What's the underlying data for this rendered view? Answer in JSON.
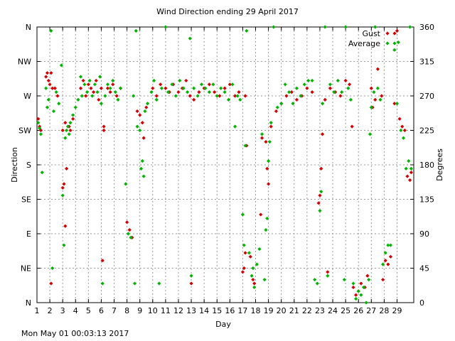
{
  "footer": {
    "timestamp": "Mon May 01 00:03:13 2017"
  },
  "chart_data": {
    "type": "scatter",
    "title": "Wind Direction ending 29 April 2017",
    "xlabel": "Day",
    "ylabel_left": "Direction",
    "ylabel_right": "Degrees",
    "xlim": [
      1,
      30.3
    ],
    "ylim": [
      0,
      360
    ],
    "grid": true,
    "legend_position": "top-right",
    "x_ticks": [
      "1",
      "2",
      "3",
      "4",
      "5",
      "6",
      "7",
      "8",
      "9",
      "10",
      "11",
      "12",
      "13",
      "14",
      "15",
      "16",
      "17",
      "18",
      "19",
      "20",
      "21",
      "22",
      "23",
      "24",
      "25",
      "26",
      "27",
      "28",
      "29"
    ],
    "y_left_ticks": [
      {
        "value": 0,
        "label": "N"
      },
      {
        "value": 45,
        "label": "NE"
      },
      {
        "value": 90,
        "label": "E"
      },
      {
        "value": 135,
        "label": "SE"
      },
      {
        "value": 180,
        "label": "S"
      },
      {
        "value": 225,
        "label": "SW"
      },
      {
        "value": 270,
        "label": "W"
      },
      {
        "value": 315,
        "label": "NW"
      },
      {
        "value": 360,
        "label": "N"
      }
    ],
    "y_right_ticks": [
      "0",
      "45",
      "90",
      "135",
      "180",
      "225",
      "270",
      "315",
      "360"
    ],
    "series": [
      {
        "name": "Gust",
        "color": "#d40000",
        "points": [
          [
            1.1,
            240
          ],
          [
            1.2,
            230
          ],
          [
            1.3,
            225
          ],
          [
            1.7,
            295
          ],
          [
            1.8,
            300
          ],
          [
            1.9,
            290
          ],
          [
            2.0,
            285
          ],
          [
            2.1,
            300
          ],
          [
            2.2,
            280
          ],
          [
            2.1,
            25
          ],
          [
            2.4,
            280
          ],
          [
            2.6,
            270
          ],
          [
            3.0,
            150
          ],
          [
            3.1,
            155
          ],
          [
            3.2,
            100
          ],
          [
            3.3,
            175
          ],
          [
            3.0,
            225
          ],
          [
            3.2,
            235
          ],
          [
            3.5,
            230
          ],
          [
            3.6,
            225
          ],
          [
            3.8,
            240
          ],
          [
            4.4,
            280
          ],
          [
            4.6,
            290
          ],
          [
            4.8,
            270
          ],
          [
            5.0,
            285
          ],
          [
            5.2,
            280
          ],
          [
            5.4,
            275
          ],
          [
            5.6,
            290
          ],
          [
            5.8,
            265
          ],
          [
            6.0,
            280
          ],
          [
            6.1,
            55
          ],
          [
            6.2,
            225
          ],
          [
            6.2,
            230
          ],
          [
            6.5,
            280
          ],
          [
            6.7,
            275
          ],
          [
            6.9,
            285
          ],
          [
            7.2,
            270
          ],
          [
            7.5,
            280
          ],
          [
            8.0,
            105
          ],
          [
            8.2,
            95
          ],
          [
            8.4,
            85
          ],
          [
            8.8,
            250
          ],
          [
            9.0,
            245
          ],
          [
            9.2,
            235
          ],
          [
            9.3,
            215
          ],
          [
            9.5,
            255
          ],
          [
            10.0,
            280
          ],
          [
            10.3,
            270
          ],
          [
            10.6,
            285
          ],
          [
            11.0,
            280
          ],
          [
            11.3,
            275
          ],
          [
            11.6,
            285
          ],
          [
            12.0,
            275
          ],
          [
            12.3,
            280
          ],
          [
            12.6,
            290
          ],
          [
            12.9,
            270
          ],
          [
            13.0,
            25
          ],
          [
            13.2,
            265
          ],
          [
            13.6,
            275
          ],
          [
            14.0,
            280
          ],
          [
            14.4,
            285
          ],
          [
            14.8,
            275
          ],
          [
            15.2,
            270
          ],
          [
            15.6,
            280
          ],
          [
            16.0,
            285
          ],
          [
            16.4,
            270
          ],
          [
            16.7,
            275
          ],
          [
            17.0,
            40
          ],
          [
            17.1,
            45
          ],
          [
            17.2,
            65
          ],
          [
            17.3,
            205
          ],
          [
            17.2,
            270
          ],
          [
            17.6,
            60
          ],
          [
            17.8,
            30
          ],
          [
            17.9,
            25
          ],
          [
            18.4,
            115
          ],
          [
            18.5,
            215
          ],
          [
            18.8,
            210
          ],
          [
            18.9,
            175
          ],
          [
            19.0,
            155
          ],
          [
            19.2,
            230
          ],
          [
            19.6,
            250
          ],
          [
            20.0,
            260
          ],
          [
            20.4,
            270
          ],
          [
            20.8,
            275
          ],
          [
            21.2,
            265
          ],
          [
            21.6,
            270
          ],
          [
            22.0,
            280
          ],
          [
            22.4,
            275
          ],
          [
            22.9,
            130
          ],
          [
            23.0,
            140
          ],
          [
            23.1,
            175
          ],
          [
            23.2,
            220
          ],
          [
            23.4,
            265
          ],
          [
            23.6,
            40
          ],
          [
            23.8,
            280
          ],
          [
            24.2,
            275
          ],
          [
            24.6,
            270
          ],
          [
            25.0,
            290
          ],
          [
            25.3,
            285
          ],
          [
            25.5,
            230
          ],
          [
            25.6,
            20
          ],
          [
            25.8,
            10
          ],
          [
            26.0,
            15
          ],
          [
            26.2,
            25
          ],
          [
            26.5,
            20
          ],
          [
            26.7,
            35
          ],
          [
            27.0,
            280
          ],
          [
            27.1,
            255
          ],
          [
            27.3,
            265
          ],
          [
            27.5,
            305
          ],
          [
            27.8,
            270
          ],
          [
            27.9,
            30
          ],
          [
            28.1,
            55
          ],
          [
            28.3,
            50
          ],
          [
            28.5,
            60
          ],
          [
            28.8,
            260
          ],
          [
            29.0,
            355
          ],
          [
            29.2,
            240
          ],
          [
            29.4,
            230
          ],
          [
            29.6,
            225
          ],
          [
            29.8,
            165
          ],
          [
            30.0,
            160
          ],
          [
            30.1,
            170
          ]
        ]
      },
      {
        "name": "Average",
        "color": "#00b400",
        "points": [
          [
            1.1,
            235
          ],
          [
            1.2,
            228
          ],
          [
            1.3,
            220
          ],
          [
            1.4,
            170
          ],
          [
            1.7,
            280
          ],
          [
            1.8,
            255
          ],
          [
            1.9,
            265
          ],
          [
            2.1,
            355
          ],
          [
            2.2,
            45
          ],
          [
            2.3,
            250
          ],
          [
            2.5,
            275
          ],
          [
            2.7,
            260
          ],
          [
            2.9,
            310
          ],
          [
            3.0,
            140
          ],
          [
            3.1,
            75
          ],
          [
            3.2,
            215
          ],
          [
            3.3,
            225
          ],
          [
            3.4,
            230
          ],
          [
            3.5,
            220
          ],
          [
            3.6,
            235
          ],
          [
            3.8,
            245
          ],
          [
            4.0,
            255
          ],
          [
            4.2,
            265
          ],
          [
            4.4,
            295
          ],
          [
            4.5,
            270
          ],
          [
            4.7,
            285
          ],
          [
            4.9,
            275
          ],
          [
            5.1,
            290
          ],
          [
            5.3,
            270
          ],
          [
            5.5,
            285
          ],
          [
            5.7,
            275
          ],
          [
            5.9,
            295
          ],
          [
            6.0,
            260
          ],
          [
            6.1,
            25
          ],
          [
            6.3,
            270
          ],
          [
            6.5,
            285
          ],
          [
            6.7,
            280
          ],
          [
            6.9,
            290
          ],
          [
            7.1,
            275
          ],
          [
            7.3,
            265
          ],
          [
            7.5,
            280
          ],
          [
            7.9,
            155
          ],
          [
            8.1,
            90
          ],
          [
            8.3,
            85
          ],
          [
            8.5,
            270
          ],
          [
            8.6,
            25
          ],
          [
            8.7,
            355
          ],
          [
            8.8,
            230
          ],
          [
            9.0,
            225
          ],
          [
            9.1,
            175
          ],
          [
            9.2,
            185
          ],
          [
            9.3,
            165
          ],
          [
            9.4,
            250
          ],
          [
            9.6,
            260
          ],
          [
            9.9,
            275
          ],
          [
            10.1,
            290
          ],
          [
            10.3,
            265
          ],
          [
            10.5,
            25
          ],
          [
            10.7,
            280
          ],
          [
            11.0,
            360
          ],
          [
            11.2,
            275
          ],
          [
            11.5,
            285
          ],
          [
            11.8,
            270
          ],
          [
            12.1,
            290
          ],
          [
            12.4,
            280
          ],
          [
            12.7,
            275
          ],
          [
            12.9,
            345
          ],
          [
            13.0,
            35
          ],
          [
            13.2,
            280
          ],
          [
            13.5,
            270
          ],
          [
            13.8,
            285
          ],
          [
            14.1,
            280
          ],
          [
            14.4,
            275
          ],
          [
            14.7,
            285
          ],
          [
            15.0,
            270
          ],
          [
            15.3,
            280
          ],
          [
            15.6,
            275
          ],
          [
            15.9,
            265
          ],
          [
            16.2,
            285
          ],
          [
            16.4,
            230
          ],
          [
            16.6,
            270
          ],
          [
            16.8,
            265
          ],
          [
            17.0,
            115
          ],
          [
            17.1,
            75
          ],
          [
            17.2,
            205
          ],
          [
            17.3,
            355
          ],
          [
            17.5,
            65
          ],
          [
            17.7,
            35
          ],
          [
            17.8,
            45
          ],
          [
            17.9,
            20
          ],
          [
            18.1,
            50
          ],
          [
            18.3,
            70
          ],
          [
            18.5,
            220
          ],
          [
            18.7,
            30
          ],
          [
            18.8,
            95
          ],
          [
            18.9,
            110
          ],
          [
            19.0,
            185
          ],
          [
            19.1,
            210
          ],
          [
            19.2,
            235
          ],
          [
            19.4,
            360
          ],
          [
            19.7,
            255
          ],
          [
            20.0,
            260
          ],
          [
            20.3,
            285
          ],
          [
            20.6,
            275
          ],
          [
            20.9,
            260
          ],
          [
            21.2,
            280
          ],
          [
            21.5,
            270
          ],
          [
            21.8,
            285
          ],
          [
            22.1,
            290
          ],
          [
            22.4,
            290
          ],
          [
            22.6,
            30
          ],
          [
            22.8,
            25
          ],
          [
            23.0,
            120
          ],
          [
            23.1,
            145
          ],
          [
            23.2,
            260
          ],
          [
            23.4,
            360
          ],
          [
            23.6,
            35
          ],
          [
            23.8,
            285
          ],
          [
            24.1,
            275
          ],
          [
            24.4,
            290
          ],
          [
            24.7,
            275
          ],
          [
            24.9,
            30
          ],
          [
            25.0,
            360
          ],
          [
            25.2,
            280
          ],
          [
            25.4,
            265
          ],
          [
            25.6,
            25
          ],
          [
            25.8,
            5
          ],
          [
            26.0,
            15
          ],
          [
            26.2,
            10
          ],
          [
            26.4,
            20
          ],
          [
            26.6,
            0
          ],
          [
            26.8,
            30
          ],
          [
            26.9,
            220
          ],
          [
            27.0,
            255
          ],
          [
            27.2,
            275
          ],
          [
            27.3,
            360
          ],
          [
            27.5,
            280
          ],
          [
            27.7,
            265
          ],
          [
            27.9,
            50
          ],
          [
            28.1,
            65
          ],
          [
            28.3,
            75
          ],
          [
            28.5,
            75
          ],
          [
            28.8,
            330
          ],
          [
            29.0,
            260
          ],
          [
            29.1,
            340
          ],
          [
            29.3,
            225
          ],
          [
            29.5,
            215
          ],
          [
            29.7,
            175
          ],
          [
            29.9,
            185
          ],
          [
            30.0,
            360
          ],
          [
            30.1,
            175
          ]
        ]
      }
    ]
  }
}
